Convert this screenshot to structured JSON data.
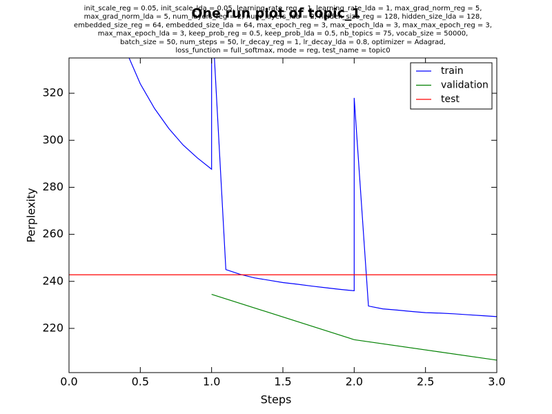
{
  "chart_data": {
    "type": "line",
    "title": "One run plot of topic_1",
    "subtitle": [
      "init_scale_reg = 0.05, init_scale_lda = 0.05, learning_rate_reg = 1, learning_rate_lda = 1, max_grad_norm_reg = 5,",
      "max_grad_norm_lda = 5, num_layers_reg = 2, num_layers_lda = 2, hidden_size_reg = 128, hidden_size_lda = 128,",
      "embedded_size_reg = 64, embedded_size_lda = 64, max_epoch_reg = 3, max_epoch_lda = 3, max_max_epoch_reg = 3,",
      "max_max_epoch_lda = 3, keep_prob_reg = 0.5, keep_prob_lda = 0.5, nb_topics = 75, vocab_size = 50000,",
      "batch_size = 50, num_steps = 50, lr_decay_reg = 1, lr_decay_lda = 0.8, optimizer = Adagrad,",
      "loss_function = full_softmax, mode = reg, test_name = topic0"
    ],
    "x_label": "Steps",
    "y_label": "Perplexity",
    "series": [
      {
        "name": "train",
        "color": "#0000ff",
        "x": [
          0.4,
          0.5,
          0.6,
          0.7,
          0.8,
          0.9,
          1.0,
          1.0,
          1.1,
          1.2,
          1.3,
          1.4,
          1.5,
          1.6,
          1.7,
          1.8,
          1.9,
          2.0,
          2.0,
          2.1,
          2.2,
          2.3,
          2.4,
          2.5,
          2.6,
          2.7,
          2.8,
          2.9,
          3.0
        ],
        "values": [
          338,
          324,
          313.5,
          305,
          298,
          292.5,
          287.7,
          357,
          245,
          243,
          241.5,
          240.5,
          239.5,
          238.8,
          238,
          237.3,
          236.6,
          236,
          318,
          229.5,
          228.3,
          227.8,
          227.2,
          226.7,
          226.5,
          226.2,
          225.8,
          225.4,
          225
        ]
      },
      {
        "name": "validation",
        "color": "#008000",
        "x": [
          1.0,
          2.0,
          3.0
        ],
        "values": [
          234.5,
          215.2,
          206.5
        ]
      },
      {
        "name": "test",
        "color": "#ff0000",
        "x": [
          0.0,
          3.0
        ],
        "values": [
          242.8,
          242.8
        ]
      }
    ],
    "xlim": [
      0,
      3
    ],
    "ylim": [
      201.2,
      335
    ],
    "xticks": [
      {
        "value": 0,
        "label": "0.0"
      },
      0.5,
      {
        "value": 1,
        "label": "1.0"
      },
      1.5,
      {
        "value": 2,
        "label": "2.0"
      },
      2.5,
      {
        "value": 3,
        "label": "3.0"
      }
    ],
    "yticks": [
      220,
      240,
      260,
      280,
      300,
      320
    ],
    "legend": "upper right",
    "grid": false
  }
}
